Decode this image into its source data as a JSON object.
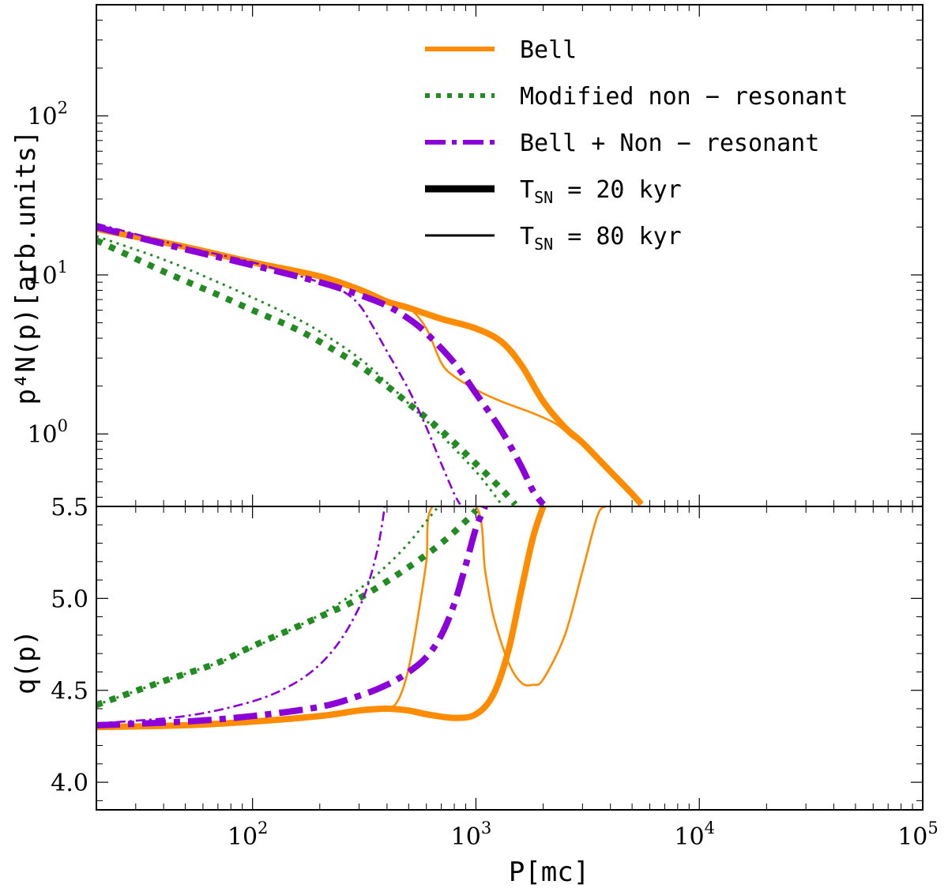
{
  "chart_data": {
    "type": "line",
    "x_scale": "log",
    "xlim": [
      20,
      100000
    ],
    "xlabel": "P[mc]",
    "x_tick_labels": [
      "10",
      "10",
      "10",
      "10"
    ],
    "x_tick_exponents": [
      "2",
      "3",
      "4",
      "5"
    ],
    "x_tick_values": [
      100,
      1000,
      10000,
      100000
    ],
    "colors": {
      "bell": "#ff8c00",
      "nonres": "#228b22",
      "combined": "#8b00d9"
    },
    "top_panel": {
      "ylabel": "p⁴N(p)[arb.units]",
      "y_scale": "log",
      "ylim": [
        0.35,
        500
      ],
      "y_tick_labels": [
        "10",
        "10",
        "10"
      ],
      "y_tick_exponents": [
        "0",
        "1",
        "2"
      ],
      "y_tick_values": [
        1,
        10,
        100
      ]
    },
    "bottom_panel": {
      "ylabel": "q(p)",
      "y_scale": "linear",
      "ylim": [
        3.85,
        5.5
      ],
      "y_tick_labels": [
        "4.0",
        "4.5",
        "5.0",
        "5.5"
      ],
      "y_tick_values": [
        4.0,
        4.5,
        5.0,
        5.5
      ]
    },
    "legend": {
      "position": "top-right",
      "entries": [
        {
          "label": "Bell",
          "series": "bell",
          "style": "solid"
        },
        {
          "label": "Modified non − resonant",
          "series": "nonres",
          "style": "dotted"
        },
        {
          "label": "Bell + Non − resonant",
          "series": "combined",
          "style": "dashdot"
        },
        {
          "label": "T",
          "sub": "SN",
          "tail": " = 20 kyr",
          "series": "black",
          "style": "thick"
        },
        {
          "label": "T",
          "sub": "SN",
          "tail": " = 80 kyr",
          "series": "black",
          "style": "thin"
        }
      ]
    },
    "series": [
      {
        "name": "Bell",
        "T": "20 kyr",
        "panel": "top",
        "color": "bell",
        "style": "solid",
        "width": "thick",
        "x": [
          20,
          50,
          100,
          200,
          300,
          400,
          500,
          700,
          1000,
          1300,
          1600,
          2000,
          2500,
          3000,
          4000,
          5000,
          5500
        ],
        "y": [
          19.5,
          15.0,
          12.0,
          9.8,
          8.1,
          6.8,
          6.2,
          5.3,
          4.6,
          3.8,
          2.7,
          1.6,
          1.1,
          0.88,
          0.58,
          0.42,
          0.36
        ]
      },
      {
        "name": "Bell",
        "T": "80 kyr",
        "panel": "top",
        "color": "bell",
        "style": "solid",
        "width": "thin",
        "x": [
          20,
          50,
          100,
          200,
          300,
          400,
          500,
          600,
          700,
          800,
          1000,
          1300,
          1800,
          2300,
          2700,
          3000
        ],
        "y": [
          20.0,
          15.0,
          12.0,
          9.8,
          8.1,
          6.8,
          6.2,
          4.6,
          2.8,
          2.3,
          1.9,
          1.6,
          1.35,
          1.15,
          0.95,
          0.88
        ]
      },
      {
        "name": "Modified non-resonant",
        "T": "20 kyr",
        "panel": "top",
        "color": "nonres",
        "style": "dotted",
        "width": "thick",
        "x": [
          20,
          40,
          70,
          100,
          150,
          200,
          300,
          400,
          500,
          700,
          1000,
          1300,
          1500
        ],
        "y": [
          16.5,
          10.5,
          7.5,
          6.0,
          4.7,
          3.8,
          2.7,
          2.0,
          1.55,
          1.05,
          0.65,
          0.45,
          0.36
        ]
      },
      {
        "name": "Modified non-resonant",
        "T": "80 kyr",
        "panel": "top",
        "color": "nonres",
        "style": "dotted",
        "width": "thin",
        "x": [
          20,
          40,
          70,
          100,
          150,
          200,
          300,
          400,
          500,
          700,
          1000,
          1200,
          1300
        ],
        "y": [
          17.5,
          12.5,
          9.0,
          7.2,
          5.5,
          4.4,
          3.0,
          2.1,
          1.55,
          0.98,
          0.58,
          0.42,
          0.36
        ]
      },
      {
        "name": "Bell + Non-resonant",
        "T": "20 kyr",
        "panel": "top",
        "color": "combined",
        "style": "dashdot",
        "width": "thick",
        "x": [
          20,
          50,
          100,
          200,
          300,
          400,
          500,
          600,
          800,
          1000,
          1300,
          1600,
          1800,
          2000
        ],
        "y": [
          20.0,
          14.5,
          11.5,
          9.0,
          7.5,
          6.4,
          5.3,
          4.3,
          2.8,
          1.8,
          1.05,
          0.62,
          0.44,
          0.36
        ]
      },
      {
        "name": "Bell + Non-resonant",
        "T": "80 kyr",
        "panel": "top",
        "color": "combined",
        "style": "dashdot",
        "width": "thin",
        "x": [
          20,
          50,
          100,
          200,
          250,
          300,
          350,
          400,
          500,
          600,
          700,
          800,
          850
        ],
        "y": [
          21.0,
          15.0,
          12.0,
          9.0,
          8.0,
          6.5,
          4.6,
          3.3,
          1.9,
          1.1,
          0.65,
          0.42,
          0.36
        ]
      },
      {
        "name": "Bell",
        "T": "20 kyr",
        "panel": "bottom",
        "color": "bell",
        "style": "solid",
        "width": "thick",
        "x": [
          20,
          50,
          100,
          200,
          300,
          400,
          500,
          600,
          800,
          1000,
          1200,
          1400,
          1600,
          1800,
          2000
        ],
        "y": [
          4.3,
          4.31,
          4.33,
          4.36,
          4.39,
          4.4,
          4.39,
          4.37,
          4.35,
          4.37,
          4.48,
          4.72,
          5.05,
          5.33,
          5.5
        ]
      },
      {
        "name": "Bell",
        "T": "80 kyr",
        "panel": "bottom",
        "color": "bell",
        "style": "solid",
        "width": "thin",
        "x": [
          20,
          50,
          100,
          200,
          300,
          400,
          450,
          500,
          550,
          600,
          640,
          1000,
          1100,
          1200,
          1400,
          1600,
          1800,
          2000,
          2500,
          3000,
          3500,
          3800
        ],
        "y": [
          4.3,
          4.31,
          4.33,
          4.36,
          4.39,
          4.4,
          4.45,
          4.62,
          4.9,
          5.2,
          5.5,
          5.5,
          5.15,
          4.9,
          4.65,
          4.54,
          4.53,
          4.56,
          4.8,
          5.15,
          5.45,
          5.5
        ]
      },
      {
        "name": "Modified non-resonant",
        "T": "20 kyr",
        "panel": "bottom",
        "color": "nonres",
        "style": "dotted",
        "width": "thick",
        "x": [
          20,
          40,
          70,
          100,
          200,
          300,
          500,
          700,
          900,
          1000
        ],
        "y": [
          4.42,
          4.55,
          4.65,
          4.74,
          4.9,
          5.0,
          5.17,
          5.3,
          5.42,
          5.48
        ]
      },
      {
        "name": "Modified non-resonant",
        "T": "80 kyr",
        "panel": "bottom",
        "color": "nonres",
        "style": "dotted",
        "width": "thin",
        "x": [
          20,
          40,
          70,
          100,
          200,
          300,
          400,
          500,
          600,
          680
        ],
        "y": [
          4.42,
          4.55,
          4.65,
          4.73,
          4.91,
          5.05,
          5.18,
          5.3,
          5.42,
          5.5
        ]
      },
      {
        "name": "Bell + Non-resonant",
        "T": "20 kyr",
        "panel": "bottom",
        "color": "combined",
        "style": "dashdot",
        "width": "thick",
        "x": [
          20,
          50,
          100,
          200,
          300,
          400,
          500,
          600,
          700,
          800,
          900,
          1000,
          1100
        ],
        "y": [
          4.31,
          4.33,
          4.36,
          4.41,
          4.47,
          4.53,
          4.6,
          4.68,
          4.8,
          4.97,
          5.18,
          5.38,
          5.5
        ]
      },
      {
        "name": "Bell + Non-resonant",
        "T": "80 kyr",
        "panel": "bottom",
        "color": "combined",
        "style": "dashdot",
        "width": "thin",
        "x": [
          20,
          50,
          100,
          150,
          200,
          250,
          300,
          330,
          360,
          380,
          390
        ],
        "y": [
          4.32,
          4.36,
          4.44,
          4.53,
          4.64,
          4.78,
          4.95,
          5.08,
          5.25,
          5.4,
          5.5
        ]
      }
    ]
  }
}
